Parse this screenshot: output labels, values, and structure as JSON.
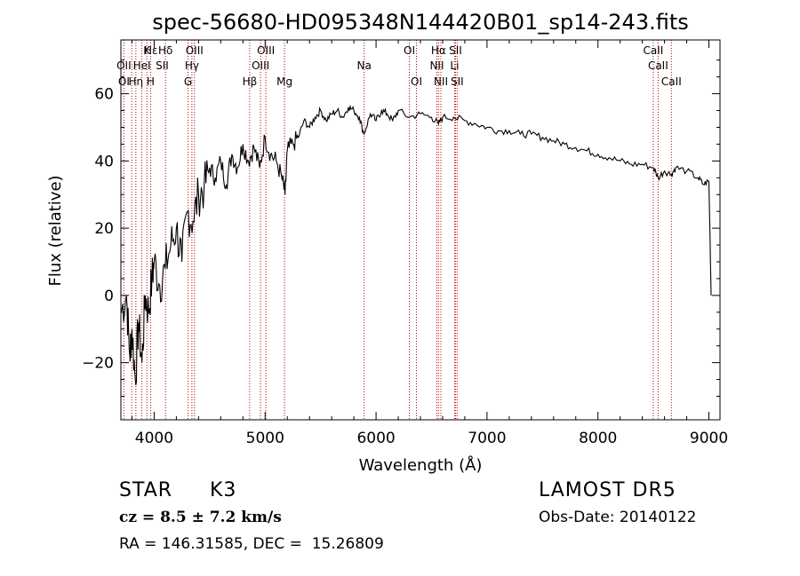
{
  "chart_data": {
    "type": "line",
    "title": "spec-56680-HD095348N144420B01_sp14-243.fits",
    "xlabel": "Wavelength (Å)",
    "ylabel": "Flux (relative)",
    "xlim": [
      3700,
      9100
    ],
    "ylim": [
      -37,
      76
    ],
    "x_ticks": [
      "4000",
      "5000",
      "6000",
      "7000",
      "8000",
      "9000"
    ],
    "y_ticks": [
      "-20",
      "0",
      "20",
      "40",
      "60"
    ],
    "grid": false,
    "series": [
      {
        "x": [
          3700,
          3750,
          3780,
          3800,
          3830,
          3860,
          3890,
          3920,
          3950,
          3980,
          4000,
          4050,
          4100,
          4150,
          4200,
          4250,
          4300,
          4350,
          4400,
          4450,
          4500,
          4550,
          4600,
          4650,
          4700,
          4750,
          4800,
          4850,
          4900,
          4950,
          5000,
          5050,
          5100,
          5150,
          5180,
          5200,
          5250,
          5300,
          5350,
          5400,
          5450,
          5500,
          5550,
          5600,
          5650,
          5700,
          5750,
          5800,
          5850,
          5890,
          5950,
          6000,
          6050,
          6100,
          6150,
          6200,
          6300,
          6400,
          6500,
          6563,
          6600,
          6700,
          6800,
          6900,
          7000,
          7100,
          7200,
          7300,
          7400,
          7500,
          7600,
          7700,
          7800,
          7900,
          8000,
          8100,
          8200,
          8300,
          8400,
          8500,
          8542,
          8600,
          8662,
          8700,
          8800,
          8900,
          8950,
          9000,
          9020
        ],
        "y": [
          -5,
          0,
          -18,
          -10,
          -25,
          -8,
          -20,
          0,
          -5,
          5,
          10,
          3,
          8,
          15,
          20,
          10,
          25,
          22,
          30,
          32,
          38,
          35,
          40,
          33,
          42,
          38,
          45,
          40,
          44,
          38,
          47,
          42,
          40,
          35,
          30,
          43,
          45,
          47,
          52,
          50,
          53,
          55,
          52,
          54,
          55,
          53,
          56,
          55,
          53,
          48,
          54,
          52,
          55,
          54,
          52,
          55,
          53,
          54,
          53,
          51,
          53,
          53,
          52,
          51,
          50,
          49,
          49,
          48,
          48,
          47,
          46,
          45,
          44,
          43,
          42,
          41,
          40,
          39,
          39,
          38,
          35,
          37,
          36,
          38,
          37,
          35,
          33,
          34,
          0
        ]
      }
    ],
    "line_labels": [
      {
        "text": "Hδ",
        "x": 4102,
        "row": 1
      },
      {
        "text": "K",
        "x": 3934,
        "row": 1
      },
      {
        "text": "Hε",
        "x": 3970,
        "row": 1
      },
      {
        "text": "OIII",
        "x": 4363,
        "row": 1
      },
      {
        "text": "OIII",
        "x": 5007,
        "row": 1
      },
      {
        "text": "OI",
        "x": 6300,
        "row": 1
      },
      {
        "text": "Hα",
        "x": 6563,
        "row": 1
      },
      {
        "text": "SII",
        "x": 6716,
        "row": 1
      },
      {
        "text": "CaII",
        "x": 8498,
        "row": 1
      },
      {
        "text": "OII",
        "x": 3727,
        "row": 2
      },
      {
        "text": "HeI",
        "x": 3889,
        "row": 2
      },
      {
        "text": "SII",
        "x": 4072,
        "row": 2
      },
      {
        "text": "Hγ",
        "x": 4340,
        "row": 2
      },
      {
        "text": "OIII",
        "x": 4959,
        "row": 2
      },
      {
        "text": "Na",
        "x": 5893,
        "row": 2
      },
      {
        "text": "NII",
        "x": 6548,
        "row": 2
      },
      {
        "text": "Li",
        "x": 6708,
        "row": 2
      },
      {
        "text": "CaII",
        "x": 8542,
        "row": 2
      },
      {
        "text": "OI",
        "x": 3727,
        "row": 3
      },
      {
        "text": "Hη",
        "x": 3835,
        "row": 3
      },
      {
        "text": "H",
        "x": 3968,
        "row": 3
      },
      {
        "text": "G",
        "x": 4305,
        "row": 3
      },
      {
        "text": "Hβ",
        "x": 4861,
        "row": 3
      },
      {
        "text": "Mg",
        "x": 5175,
        "row": 3
      },
      {
        "text": "OI",
        "x": 6364,
        "row": 3
      },
      {
        "text": "NII",
        "x": 6584,
        "row": 3
      },
      {
        "text": "SII",
        "x": 6731,
        "row": 3
      },
      {
        "text": "CaII",
        "x": 8662,
        "row": 3
      }
    ],
    "marker_lines_x": [
      3727,
      3798,
      3835,
      3889,
      3934,
      3968,
      4102,
      4305,
      4340,
      4363,
      4861,
      4959,
      5007,
      5175,
      5893,
      6300,
      6364,
      6548,
      6563,
      6584,
      6708,
      6716,
      6731,
      8498,
      8542,
      8662
    ]
  },
  "info": {
    "object_type": "STAR",
    "subclass": "K3",
    "survey": "LAMOST DR5",
    "cz": "cz = 8.5 ± 7.2 km/s",
    "obs_date": "Obs-Date: 20140122",
    "coords": "RA = 146.31585, DEC =  15.26809"
  }
}
